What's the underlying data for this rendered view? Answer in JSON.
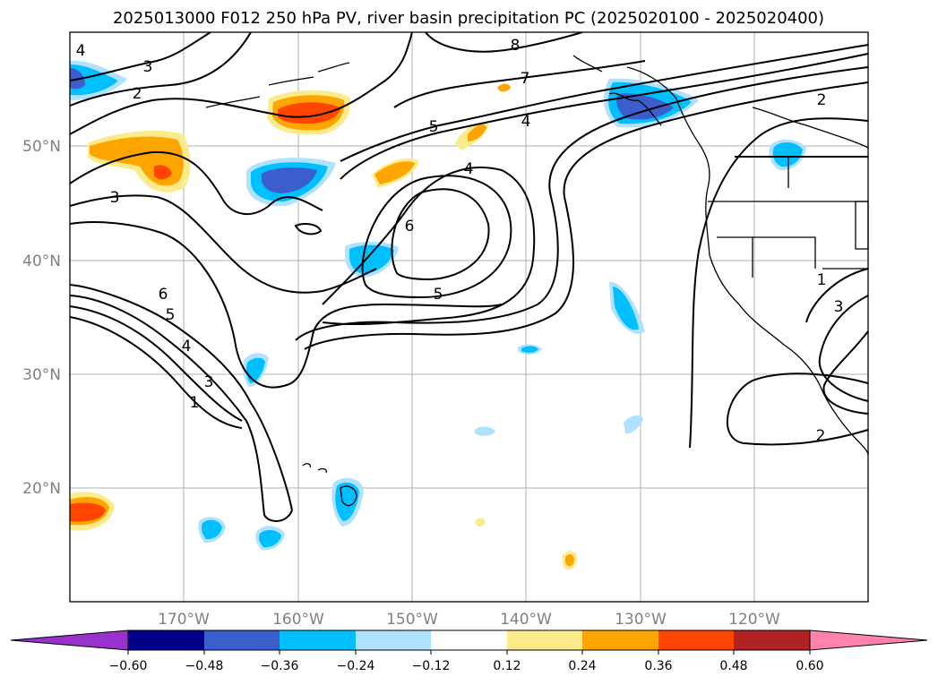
{
  "title": "2025013000 F012 250 hPa PV, river basin precipitation PC (2025020100 - 2025020400)",
  "lat_labels": [
    "50°N",
    "40°N",
    "30°N",
    "20°N"
  ],
  "lon_labels": [
    "170°W",
    "160°W",
    "150°W",
    "140°W",
    "130°W",
    "120°W"
  ],
  "colorbar": {
    "ticks": [
      "−0.60",
      "−0.48",
      "−0.36",
      "−0.24",
      "−0.12",
      "0.12",
      "0.24",
      "0.36",
      "0.48",
      "0.60"
    ],
    "colors": [
      "#9932cc",
      "#00008b",
      "#3a5fcd",
      "#00bfff",
      "#b0e2ff",
      "#ffffff",
      "#fceb8a",
      "#ffa500",
      "#ff4500",
      "#b22222",
      "#ff82ab"
    ]
  },
  "contour_labels": [
    "4",
    "3",
    "2",
    "3",
    "6",
    "5",
    "4",
    "3",
    "1",
    "8",
    "7",
    "5",
    "4",
    "4",
    "6",
    "5",
    "2",
    "1",
    "3",
    "2"
  ]
}
